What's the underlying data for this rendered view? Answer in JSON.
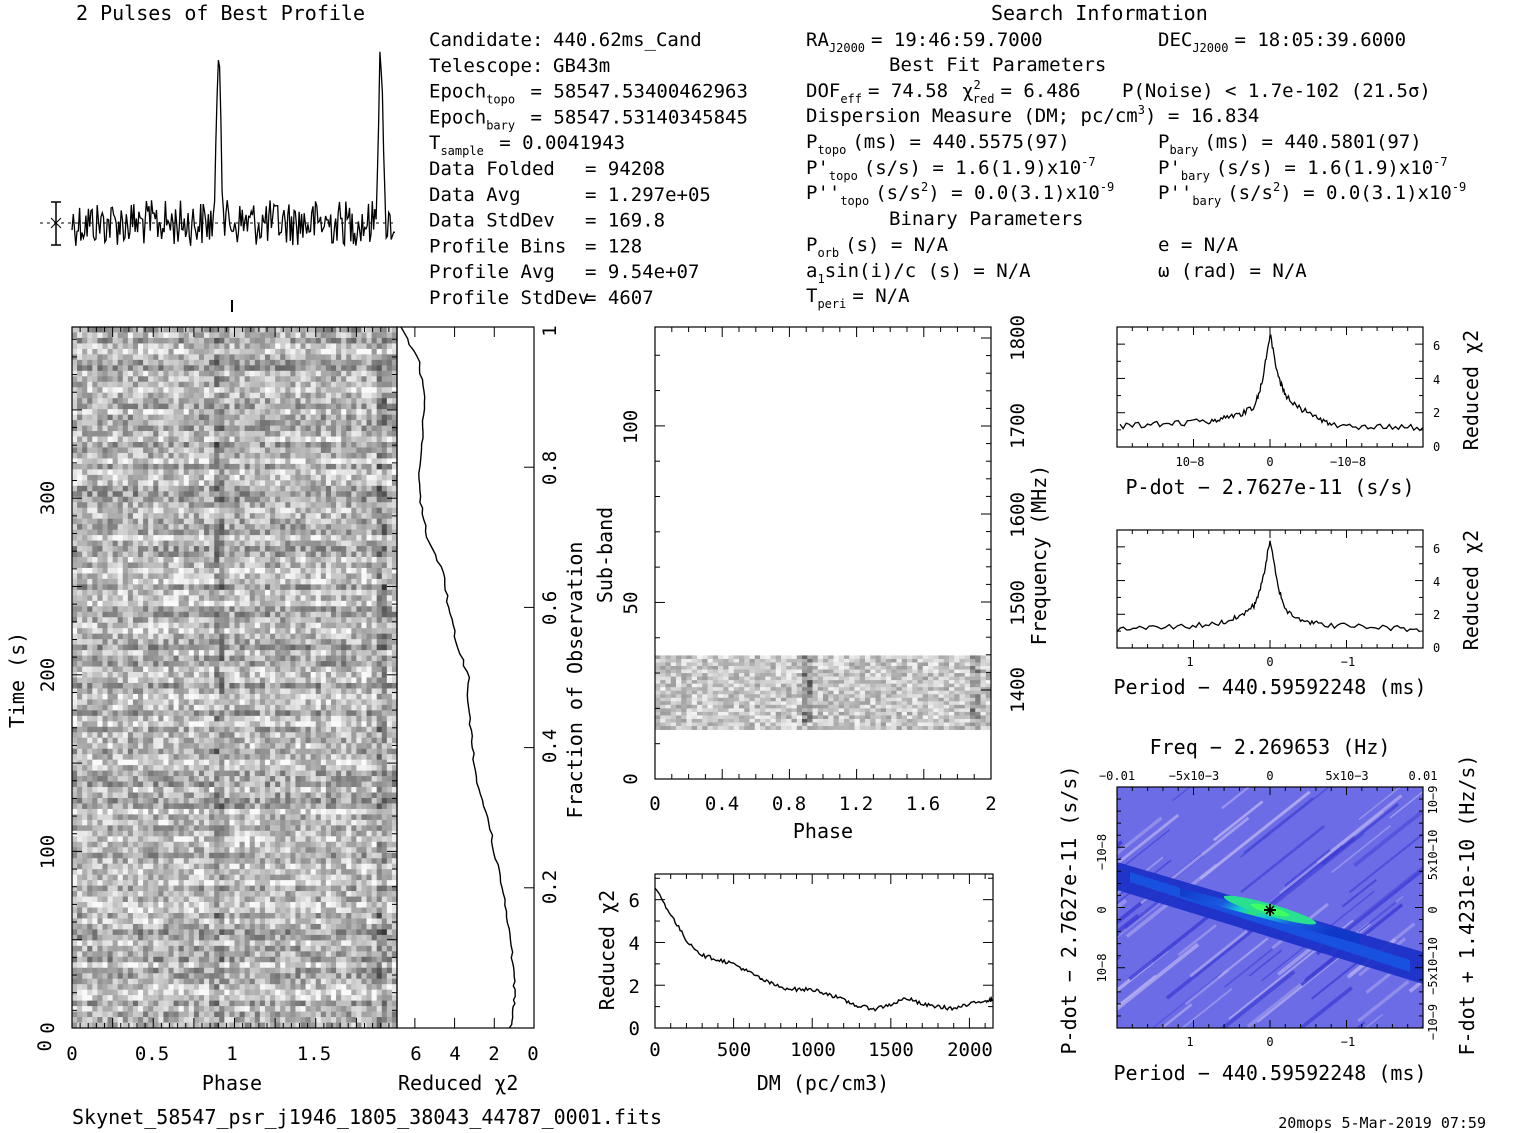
{
  "header": {
    "profile_title": "2 Pulses of Best Profile",
    "search_title": "Search Information",
    "best_fit_title": "Best Fit Parameters",
    "binary_title": "Binary Parameters"
  },
  "candidate_info": [
    {
      "label": "Candidate:",
      "value": "440.62ms_Cand"
    },
    {
      "label": "Telescope:",
      "value": "GB43m"
    },
    {
      "label": "Epoch",
      "sub": "topo",
      "value": "= 58547.53400462963"
    },
    {
      "label": "Epoch",
      "sub": "bary",
      "value": "= 58547.53140345845"
    },
    {
      "label": "T",
      "sub": "sample",
      "value": "=  0.0041943"
    },
    {
      "label": "Data Folded",
      "value": "=  94208"
    },
    {
      "label": "Data Avg",
      "value": "=  1.297e+05"
    },
    {
      "label": "Data StdDev",
      "value": "=  169.8"
    },
    {
      "label": "Profile Bins",
      "value": "=  128"
    },
    {
      "label": "Profile Avg",
      "value": "=  9.54e+07"
    },
    {
      "label": "Profile StdDev",
      "value": "=  4607"
    }
  ],
  "search_info": {
    "ra": "RA",
    "ra_sub": "J2000",
    "ra_value": "= 19:46:59.7000",
    "dec": "DEC",
    "dec_sub": "J2000",
    "dec_value": "= 18:05:39.6000",
    "dof": "DOF",
    "dof_sub": "eff",
    "dof_value": "= 74.58",
    "chi2_value": "= 6.486",
    "pnoise": "P(Noise) < 1.7e-102  (21.5σ)",
    "dm_line": "Dispersion Measure (DM; pc/cm",
    "dm_value": ") = 16.834",
    "p_topo": "(ms) =  440.5575(97)",
    "p_bary": "(ms) =  440.5801(97)",
    "pd_topo": "(s/s) =  1.6(1.9)x10",
    "pd_topo_exp": "-7",
    "pd_bary": "(s/s) =  1.6(1.9)x10",
    "pd_bary_exp": "-7",
    "pdd_topo": "(s/s",
    "pdd_topo_rest": ") = 0.0(3.1)x10",
    "pdd_topo_exp": "-9",
    "pdd_bary": "(s/s",
    "pdd_bary_rest": ") = 0.0(3.1)x10",
    "pdd_bary_exp": "-9",
    "p_orb": "(s) = N/A",
    "e": "e = N/A",
    "a1sini": "sin(i)/c (s) = N/A",
    "omega": "ω (rad) = N/A",
    "t_peri": "= N/A"
  },
  "footer": {
    "filename": "Skynet_58547_psr_j1946_1805_38043_44787_0001.fits",
    "stamp": "20mops  5-Mar-2019 07:59"
  },
  "chart_data": [
    {
      "type": "line",
      "name": "profile",
      "title": "2 Pulses of Best Profile",
      "x_range": [
        0,
        2
      ],
      "peaks_at_phase": [
        0.91,
        1.91
      ],
      "notes": "noise-like baseline with two sharp pulses"
    },
    {
      "type": "heatmap",
      "name": "time-phase",
      "xlabel": "Phase",
      "ylabel": "Time (s)",
      "xlim": [
        0,
        2
      ],
      "ylim": [
        0,
        395
      ],
      "x_ticks": [
        "0",
        "0.5",
        "1",
        "1.5"
      ],
      "y_ticks": [
        "0",
        "100",
        "200",
        "300"
      ],
      "pulse_phase": [
        0.91,
        1.91
      ]
    },
    {
      "type": "line",
      "name": "reduced-chi2-vs-time",
      "xlabel": "Reduced χ2",
      "x_ticks": [
        "6",
        "4",
        "2",
        "0"
      ],
      "ylabel_right": "Fraction of Observation",
      "y_ticks": [
        "0.2",
        "0.4",
        "0.6",
        "0.8",
        "1"
      ],
      "fraction": [
        0.0,
        0.03,
        0.06,
        0.1,
        0.15,
        0.2,
        0.25,
        0.3,
        0.35,
        0.4,
        0.45,
        0.5,
        0.55,
        0.6,
        0.65,
        0.7,
        0.75,
        0.8,
        0.85,
        0.9,
        0.95,
        1.0
      ],
      "chi2": [
        1.2,
        1.0,
        1.0,
        1.1,
        1.3,
        1.6,
        2.0,
        2.3,
        2.9,
        3.1,
        3.3,
        3.3,
        3.9,
        4.3,
        4.6,
        5.4,
        5.7,
        5.8,
        5.6,
        5.5,
        5.8,
        6.7
      ]
    },
    {
      "type": "heatmap",
      "name": "subband-phase",
      "xlabel": "Phase",
      "ylabel": "Sub-band",
      "ylabel_right": "Frequency (MHz)",
      "x_ticks": [
        "0",
        "0.4",
        "0.8",
        "1.2",
        "1.6",
        "2"
      ],
      "y_ticks": [
        "0",
        "50",
        "100"
      ],
      "y_ticks_right": [
        "1400",
        "1500",
        "1600",
        "1700",
        "1800"
      ],
      "xlim": [
        0,
        2
      ],
      "ylim": [
        0,
        128
      ],
      "band_subbands": [
        14,
        35
      ]
    },
    {
      "type": "line",
      "name": "chi2-vs-dm",
      "xlabel": "DM (pc/cm3)",
      "ylabel": "Reduced χ2",
      "x_ticks": [
        "0",
        "500",
        "1000",
        "1500",
        "2000"
      ],
      "y_ticks": [
        "0",
        "2",
        "4",
        "6"
      ],
      "xlim": [
        0,
        2150
      ],
      "ylim": [
        0,
        7.2
      ],
      "x": [
        0,
        100,
        200,
        300,
        400,
        500,
        600,
        700,
        800,
        900,
        1000,
        1100,
        1200,
        1300,
        1400,
        1500,
        1600,
        1700,
        1800,
        1900,
        2000,
        2100,
        2150
      ],
      "y": [
        6.6,
        5.3,
        4.1,
        3.4,
        3.2,
        3.0,
        2.6,
        2.2,
        1.9,
        1.8,
        1.8,
        1.6,
        1.3,
        1.0,
        0.9,
        1.1,
        1.4,
        1.1,
        1.0,
        0.9,
        1.1,
        1.3,
        1.3
      ]
    },
    {
      "type": "line",
      "name": "chi2-vs-pdot",
      "xlabel": "P-dot − 2.7627e-11 (s/s)",
      "ylabel": "Reduced χ2",
      "x_ticks": [
        "10−8",
        "0",
        "−10−8"
      ],
      "y_ticks": [
        "0",
        "2",
        "4",
        "6"
      ],
      "ylim": [
        0,
        7
      ],
      "x": [
        -1.0,
        -0.8,
        -0.6,
        -0.4,
        -0.3,
        -0.2,
        -0.1,
        -0.05,
        0.0,
        0.05,
        0.1,
        0.2,
        0.3,
        0.4,
        0.6,
        0.8,
        1.0
      ],
      "y": [
        1.1,
        1.2,
        1.1,
        1.3,
        1.8,
        2.2,
        3.0,
        4.2,
        6.6,
        3.8,
        2.4,
        1.9,
        1.7,
        1.5,
        1.4,
        1.3,
        1.2
      ]
    },
    {
      "type": "line",
      "name": "chi2-vs-period",
      "xlabel": "Period − 440.59592248 (ms)",
      "ylabel": "Reduced χ2",
      "x_ticks": [
        "1",
        "0",
        "−1"
      ],
      "y_ticks": [
        "0",
        "2",
        "4",
        "6"
      ],
      "ylim": [
        0,
        7
      ],
      "x": [
        1.9,
        1.5,
        1.0,
        0.6,
        0.4,
        0.2,
        0.1,
        0.0,
        -0.1,
        -0.2,
        -0.4,
        -0.6,
        -1.0,
        -1.5,
        -1.9
      ],
      "y": [
        1.1,
        1.2,
        1.3,
        1.5,
        1.8,
        2.5,
        3.8,
        6.4,
        3.6,
        2.2,
        1.7,
        1.4,
        1.3,
        1.2,
        1.1
      ]
    },
    {
      "type": "heatmap",
      "name": "period-pdot-plane",
      "title": "Freq − 2.269653 (Hz)",
      "xlabel": "Period − 440.59592248 (ms)",
      "ylabel": "P-dot − 2.7627e-11 (s/s)",
      "ylabel_right": "F-dot + 1.4231e-10 (Hz/s)",
      "x_ticks": [
        "1",
        "0",
        "−1"
      ],
      "top_ticks": [
        "−0.01",
        "−5x10−3",
        "0",
        "5x10−3",
        "0.01"
      ],
      "left_ticks": [
        "−10−8",
        "0",
        "10−8"
      ],
      "right_ticks": [
        "10−9",
        "5x10−10",
        "0",
        "−5x10−10",
        "−10−9"
      ],
      "peak_at": [
        0,
        0
      ]
    }
  ]
}
